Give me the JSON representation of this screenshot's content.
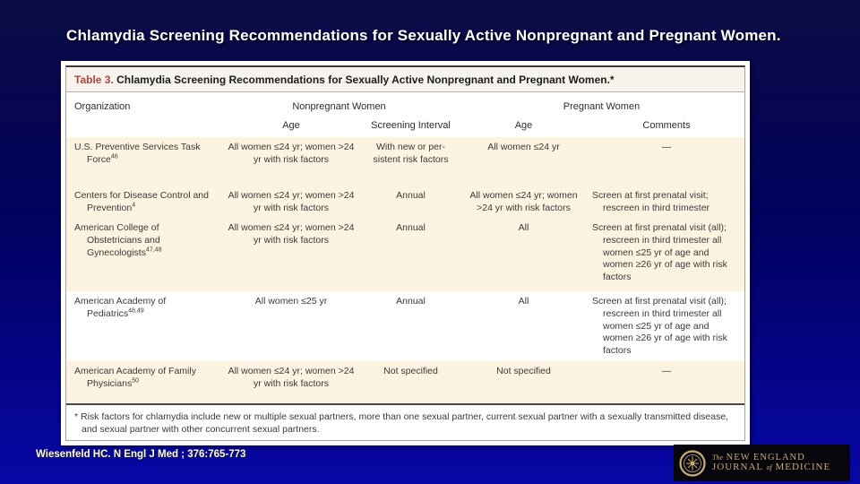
{
  "slide": {
    "title": "Chlamydia Screening Recommendations for Sexually Active Nonpregnant and Pregnant Women.",
    "citation": "Wiesenfeld HC. N Engl J Med ; 376:765-773"
  },
  "table": {
    "caption_label": "Table 3.",
    "caption_text": " Chlamydia Screening Recommendations for Sexually Active Nonpregnant and Pregnant Women.*",
    "headers": {
      "organization": "Organization",
      "nonpregnant_group": "Nonpregnant Women",
      "pregnant_group": "Pregnant Women",
      "np_age": "Age",
      "np_interval": "Screening Interval",
      "p_age": "Age",
      "p_comments": "Comments"
    },
    "rows": [
      {
        "org": "U.S. Preventive Services Task Force",
        "org_ref": "46",
        "np_age": "All women ≤24 yr; women >24 yr with risk factors",
        "np_interval": "With new or per­sistent risk factors",
        "p_age": "All women ≤24 yr",
        "comments": "—",
        "shaded": true
      },
      {
        "org": "Centers for Disease Control and Prevention",
        "org_ref": "4",
        "np_age": "All women ≤24 yr; women >24 yr with risk factors",
        "np_interval": "Annual",
        "p_age": "All women ≤24 yr; women >24 yr with risk factors",
        "comments": "Screen at first prenatal visit; rescreen in third trimester",
        "shaded": true
      },
      {
        "org": "American College of Obstetricians and Gynecologists",
        "org_ref": "47,48",
        "np_age": "All women ≤24 yr; women >24 yr with risk factors",
        "np_interval": "Annual",
        "p_age": "All",
        "comments": "Screen at first prenatal visit (all); rescreen in third tri­mester all women ≤25 yr of age and women ≥26 yr of age with risk factors",
        "shaded": true
      },
      {
        "org": "American Academy of Pediatrics",
        "org_ref": "48,49",
        "np_age": "All women ≤25 yr",
        "np_interval": "Annual",
        "p_age": "All",
        "comments": "Screen at first prenatal visit (all); rescreen in third tri­mester all women ≤25 yr of age and women ≥26 yr of age with risk factors",
        "shaded": false
      },
      {
        "org": "American Academy of Family Physicians",
        "org_ref": "50",
        "np_age": "All women ≤24 yr; women >24 yr with risk factors",
        "np_interval": "Not specified",
        "p_age": "Not specified",
        "comments": "—",
        "shaded": true
      }
    ],
    "footnote": "* Risk factors for chlamydia include new or multiple sexual partners, more than one sexual partner, current sexual partner with a sexually transmitted disease, and sexual partner with other concurrent sexual partners."
  },
  "logo": {
    "the": "The",
    "new_england": "NEW ENGLAND",
    "journal": "JOURNAL",
    "of": "of",
    "medicine": "MEDICINE"
  },
  "colors": {
    "background_top": "#0b0b44",
    "background_bottom": "#0707a6",
    "row_shade": "#fcf4e0",
    "caption_red": "#b2423b",
    "logo_gold": "#c9ac74",
    "logo_strip_bg": "#06060c",
    "title_text": "#ffffff"
  }
}
